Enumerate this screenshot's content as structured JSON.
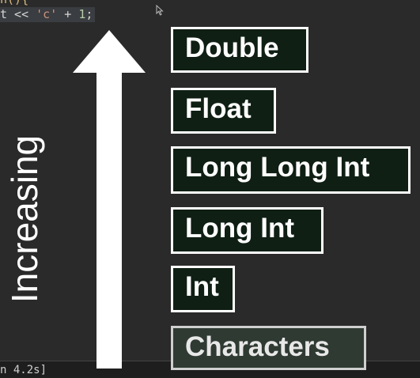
{
  "code": {
    "top_fragment": "n(){",
    "line_prefix": "t << ",
    "char_literal": "'c'",
    "operator": " + ",
    "number": "1",
    "terminator": ";"
  },
  "terminal": {
    "text": "n 4.2s]"
  },
  "diagram": {
    "axis_label": "Increasing",
    "arrow_direction": "up",
    "types": [
      {
        "id": "double",
        "label": "Double"
      },
      {
        "id": "float",
        "label": "Float"
      },
      {
        "id": "longlong",
        "label": "Long Long Int"
      },
      {
        "id": "longint",
        "label": "Long Int"
      },
      {
        "id": "int",
        "label": "Int"
      },
      {
        "id": "chars",
        "label": "Characters"
      }
    ]
  },
  "colors": {
    "background": "#2a2a2a",
    "box_fill": "#0f1f14",
    "box_border": "#ffffff",
    "arrow": "#ffffff"
  },
  "icons": {
    "cursor": "mouse-pointer-icon",
    "arrow": "up-arrow-icon"
  }
}
